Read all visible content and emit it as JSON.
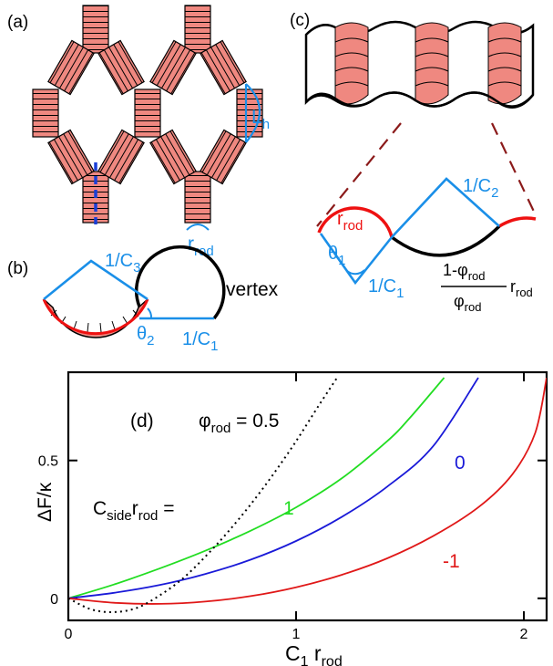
{
  "panels": {
    "a": {
      "label": "(a)",
      "length_label": "L",
      "length_sub": "h",
      "radius_label": "r",
      "radius_sub": "rod"
    },
    "b": {
      "label": "(b)",
      "c3_label": "1/C",
      "c3_sub": "3",
      "c1_label": "1/C",
      "c1_sub": "1",
      "theta_label": "θ",
      "theta_sub": "2",
      "vertex_label": "vertex"
    },
    "c": {
      "label": "(c)",
      "c2_label": "1/C",
      "c2_sub": "2",
      "c1_label": "1/C",
      "c1_sub": "1",
      "theta_label": "θ",
      "theta_sub": "1",
      "rrod_label": "r",
      "rrod_sub": "rod",
      "fraction_num": "1-φ",
      "fraction_num_sub": "rod",
      "fraction_den": "φ",
      "fraction_den_sub": "rod",
      "fraction_tail": "r",
      "fraction_tail_sub": "rod"
    },
    "d": {
      "label": "(d)",
      "phi_label": "φ",
      "phi_sub": "rod",
      "phi_value": " = 0.5",
      "cside_prefix": "C",
      "cside_sub1": "side",
      "cside_mid": "r",
      "cside_sub2": "rod",
      "cside_eq": " = ",
      "series_labels": [
        "1",
        "0",
        "-1"
      ],
      "y_axis_label": "ΔF/κ",
      "x_axis_label": "C",
      "x_axis_sub1": "1",
      "x_axis_mid": " r",
      "x_axis_sub2": "rod"
    }
  },
  "colors": {
    "rod_fill": "#ef8880",
    "rod_red": "#ee1111",
    "geometry_blue": "#1a8fe8",
    "dashed_blue": "#1a3fd8",
    "series_green": "#22dd22",
    "series_blue": "#1a1ad8",
    "series_red": "#e01818",
    "black": "#000000"
  },
  "chart_data": {
    "type": "line",
    "title": "",
    "xlabel": "C1 rrod",
    "ylabel": "ΔF/κ",
    "xlim": [
      0,
      2.1
    ],
    "ylim": [
      -0.08,
      0.82
    ],
    "xticks": [
      0,
      1,
      2
    ],
    "yticks": [
      0,
      0.5
    ],
    "grid": false,
    "series": [
      {
        "name": "1",
        "color": "#22dd22",
        "style": "solid",
        "x": [
          0,
          0.2,
          0.4,
          0.6,
          0.8,
          1.0,
          1.2,
          1.4,
          1.5,
          1.65
        ],
        "y": [
          0,
          0.05,
          0.108,
          0.172,
          0.245,
          0.33,
          0.435,
          0.57,
          0.655,
          0.8
        ]
      },
      {
        "name": "0",
        "color": "#1a1ad8",
        "style": "solid",
        "x": [
          0,
          0.2,
          0.4,
          0.6,
          0.8,
          1.0,
          1.2,
          1.4,
          1.6,
          1.8
        ],
        "y": [
          0,
          0.02,
          0.048,
          0.088,
          0.14,
          0.208,
          0.295,
          0.405,
          0.55,
          0.8
        ]
      },
      {
        "name": "-1",
        "color": "#e01818",
        "style": "solid",
        "x": [
          0,
          0.2,
          0.4,
          0.6,
          0.8,
          1.0,
          1.2,
          1.4,
          1.6,
          1.8,
          1.95,
          2.05,
          2.1
        ],
        "y": [
          0,
          -0.016,
          -0.02,
          -0.012,
          0.008,
          0.04,
          0.085,
          0.145,
          0.225,
          0.33,
          0.45,
          0.6,
          0.8
        ]
      },
      {
        "name": "φrod = 0.5",
        "color": "#000000",
        "style": "dotted",
        "x": [
          0,
          0.1,
          0.2,
          0.3,
          0.4,
          0.5,
          0.6,
          0.7,
          0.8,
          0.9,
          1.0,
          1.1,
          1.18
        ],
        "y": [
          0,
          -0.04,
          -0.05,
          -0.035,
          0.01,
          0.07,
          0.15,
          0.24,
          0.34,
          0.45,
          0.57,
          0.7,
          0.8
        ]
      }
    ]
  }
}
